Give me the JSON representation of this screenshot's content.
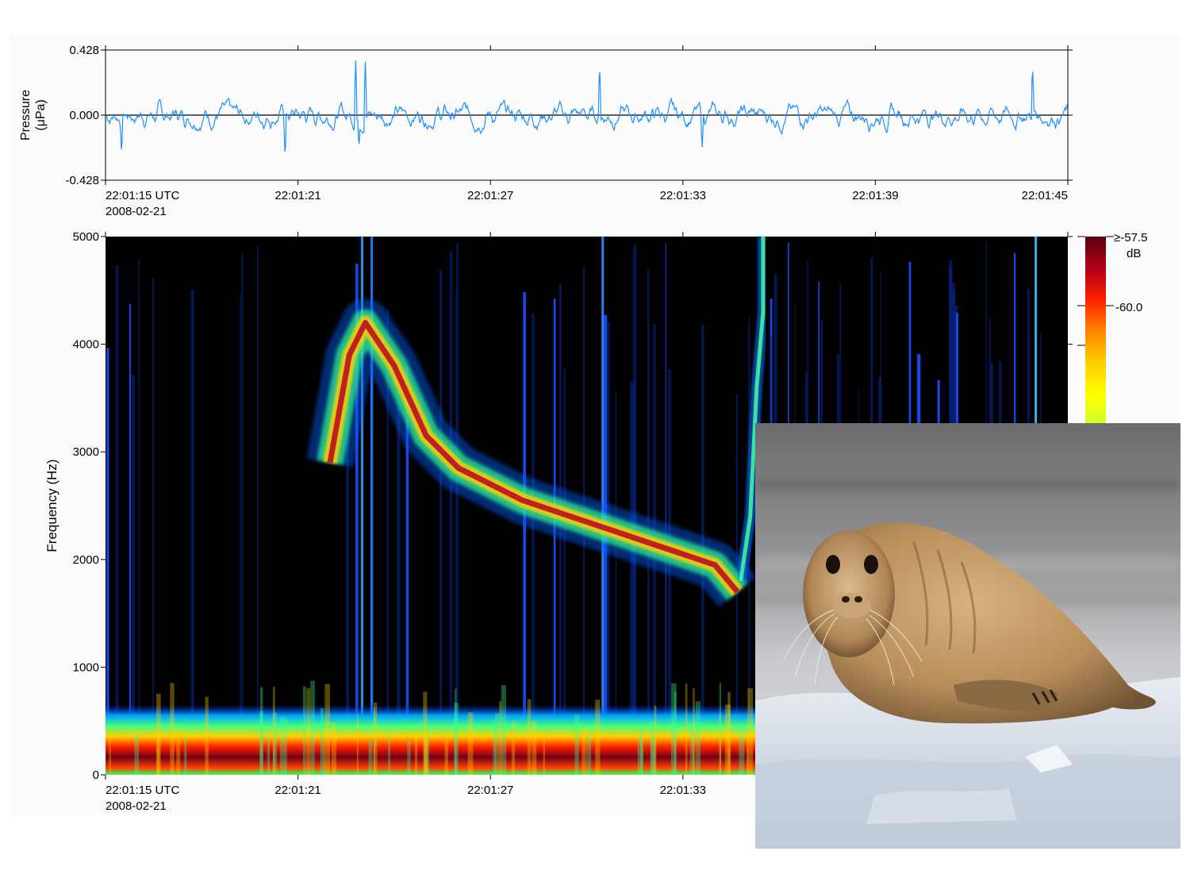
{
  "chart_data": [
    {
      "type": "line",
      "panel": "waveform",
      "ylabel_lines": [
        "Pressure",
        "(μPa)"
      ],
      "yticks": [
        "0.428",
        "0.000",
        "-0.428"
      ],
      "ylim": [
        -0.428,
        0.428
      ],
      "xlim_seconds": [
        0,
        30
      ],
      "xticks": [
        {
          "t": 0,
          "label": "22:01:15 UTC",
          "sublabel": "2008-02-21"
        },
        {
          "t": 6,
          "label": "22:01:21"
        },
        {
          "t": 12,
          "label": "22:01:27"
        },
        {
          "t": 18,
          "label": "22:01:33"
        },
        {
          "t": 24,
          "label": "22:01:39"
        },
        {
          "t": 30,
          "label": "22:01:45"
        }
      ],
      "series_color": "#1e90ff",
      "zero_line": true,
      "approx_peaks": [
        {
          "t": 7.8,
          "value": 0.36
        },
        {
          "t": 8.1,
          "value": 0.35
        },
        {
          "t": 15.4,
          "value": 0.33
        },
        {
          "t": 28.9,
          "value": 0.33
        },
        {
          "t": 0.5,
          "value": -0.26
        },
        {
          "t": 5.6,
          "value": -0.28
        },
        {
          "t": 7.9,
          "value": -0.22
        },
        {
          "t": 18.6,
          "value": -0.21
        }
      ],
      "amplitude_typical": 0.1
    },
    {
      "type": "heatmap",
      "panel": "spectrogram",
      "ylabel": "Frequency (Hz)",
      "ylim": [
        0,
        5000
      ],
      "yticks": [
        "5000",
        "4000",
        "3000",
        "2000",
        "1000",
        "0"
      ],
      "xticks": [
        {
          "t": 0,
          "label": "22:01:15 UTC",
          "sublabel": "2008-02-21"
        },
        {
          "t": 6,
          "label": "22:01:21"
        },
        {
          "t": 12,
          "label": "22:01:27"
        },
        {
          "t": 18,
          "label": "22:01:33"
        }
      ],
      "background": "#000000",
      "colorbar": {
        "labels": [
          "≥-57.5",
          "dB",
          "-60.0"
        ],
        "stops": [
          "#5a0010",
          "#b00018",
          "#ff2000",
          "#ff8800",
          "#ffd000",
          "#ffff00",
          "#c8ff30"
        ]
      },
      "call_trace": [
        {
          "t": 7.0,
          "hz": 2900
        },
        {
          "t": 7.6,
          "hz": 3900
        },
        {
          "t": 8.1,
          "hz": 4200
        },
        {
          "t": 9.0,
          "hz": 3800
        },
        {
          "t": 10.0,
          "hz": 3150
        },
        {
          "t": 11.0,
          "hz": 2850
        },
        {
          "t": 13.0,
          "hz": 2550
        },
        {
          "t": 15.0,
          "hz": 2350
        },
        {
          "t": 17.0,
          "hz": 2150
        },
        {
          "t": 19.0,
          "hz": 1950
        },
        {
          "t": 19.7,
          "hz": 1700
        }
      ],
      "upsweep_trace": [
        {
          "t": 19.8,
          "hz": 1800
        },
        {
          "t": 20.1,
          "hz": 2400
        },
        {
          "t": 20.3,
          "hz": 3600
        },
        {
          "t": 20.5,
          "hz": 4300
        },
        {
          "t": 20.5,
          "hz": 5000
        }
      ],
      "low_band_hz": [
        100,
        600
      ]
    }
  ],
  "photo": {
    "subject": "seal-icon"
  }
}
